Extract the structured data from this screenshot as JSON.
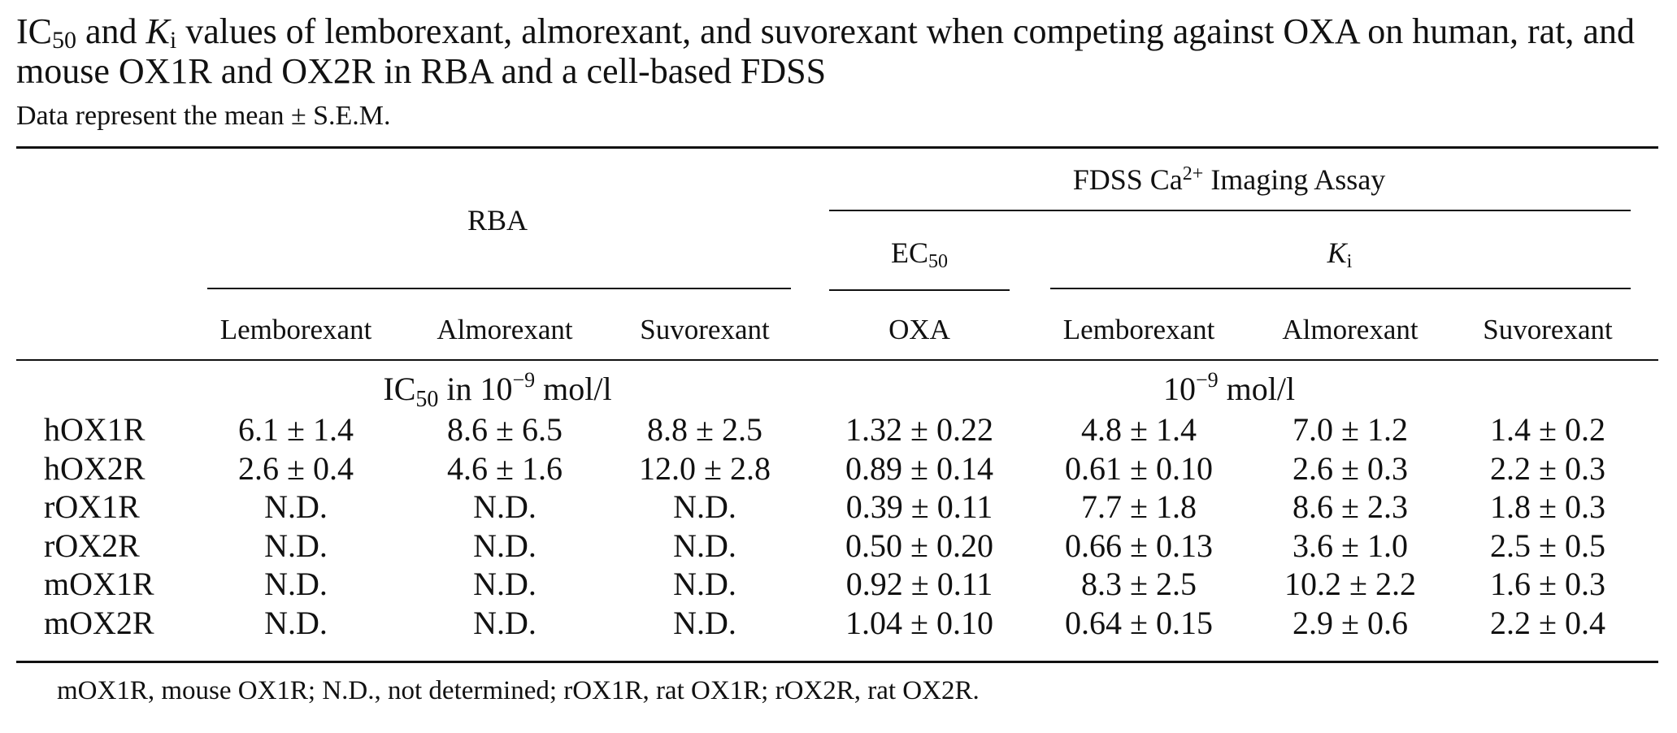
{
  "title": {
    "p1": "IC",
    "p1_sub": "50",
    "p2": " and ",
    "p3_italic": "K",
    "p3_sub": "i",
    "p4": " values of lemborexant, almorexant, and suvorexant when competing against OXA on human, rat, and mouse OX1R and OX2R in RBA and a cell-based FDSS"
  },
  "subtitle": "Data represent the mean ± S.E.M.",
  "header": {
    "rba": "RBA",
    "fdss_main": "FDSS Ca",
    "fdss_sup": "2+",
    "fdss_rest": " Imaging Assay",
    "ec_main": "EC",
    "ec_sub": "50",
    "ki_main": "K",
    "ki_sub": "i",
    "columns": [
      "Lemborexant",
      "Almorexant",
      "Suvorexant",
      "OXA",
      "Lemborexant",
      "Almorexant",
      "Suvorexant"
    ]
  },
  "units": {
    "rba_main": "IC",
    "rba_sub": "50",
    "rba_mid": " in 10",
    "rba_sup": "−9",
    "rba_end": " mol/l",
    "fdss_main": "10",
    "fdss_sup": "−9",
    "fdss_end": " mol/l"
  },
  "rows": [
    {
      "receptor": "hOX1R",
      "values": [
        "6.1 ± 1.4",
        "8.6 ± 6.5",
        "8.8 ± 2.5",
        "1.32 ± 0.22",
        "4.8 ± 1.4",
        "7.0 ± 1.2",
        "1.4 ± 0.2"
      ]
    },
    {
      "receptor": "hOX2R",
      "values": [
        "2.6 ± 0.4",
        "4.6 ± 1.6",
        "12.0 ± 2.8",
        "0.89 ± 0.14",
        "0.61 ± 0.10",
        "2.6 ± 0.3",
        "2.2 ± 0.3"
      ]
    },
    {
      "receptor": "rOX1R",
      "values": [
        "N.D.",
        "N.D.",
        "N.D.",
        "0.39 ± 0.11",
        "7.7 ± 1.8",
        "8.6 ± 2.3",
        "1.8 ± 0.3"
      ]
    },
    {
      "receptor": "rOX2R",
      "values": [
        "N.D.",
        "N.D.",
        "N.D.",
        "0.50 ± 0.20",
        "0.66 ± 0.13",
        "3.6 ± 1.0",
        "2.5 ± 0.5"
      ]
    },
    {
      "receptor": "mOX1R",
      "values": [
        "N.D.",
        "N.D.",
        "N.D.",
        "0.92 ± 0.11",
        "8.3 ± 2.5",
        "10.2 ± 2.2",
        "1.6 ± 0.3"
      ]
    },
    {
      "receptor": "mOX2R",
      "values": [
        "N.D.",
        "N.D.",
        "N.D.",
        "1.04 ± 0.10",
        "0.64 ± 0.15",
        "2.9 ± 0.6",
        "2.2 ± 0.4"
      ]
    }
  ],
  "footnote": "mOX1R, mouse OX1R; N.D., not determined; rOX1R, rat OX1R; rOX2R, rat OX2R."
}
